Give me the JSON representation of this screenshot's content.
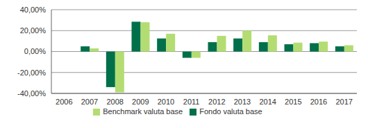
{
  "chart_data": {
    "type": "bar",
    "categories": [
      "2006",
      "2007",
      "2008",
      "2009",
      "2010",
      "2011",
      "2012",
      "2013",
      "2014",
      "2015",
      "2016",
      "2017"
    ],
    "series": [
      {
        "name": "Fondo valuta base",
        "color": "#00704a",
        "values": [
          null,
          5,
          -34,
          28.5,
          12.5,
          -6,
          9,
          12.5,
          9,
          7,
          8,
          5
        ]
      },
      {
        "name": "Benchmark valuta base",
        "color": "#b3dd72",
        "values": [
          null,
          3,
          -39,
          28,
          17,
          -6,
          15,
          20,
          15.5,
          8.5,
          9.5,
          6
        ]
      }
    ],
    "ylim": [
      -40,
      40
    ],
    "yticks": [
      {
        "value": -40,
        "label": "-40,00%"
      },
      {
        "value": -20,
        "label": "-20,00%"
      },
      {
        "value": 0,
        "label": "0,00%"
      },
      {
        "value": 20,
        "label": "20,00%"
      },
      {
        "value": 40,
        "label": "40,00%"
      }
    ],
    "grid": true,
    "legend": "bottom"
  }
}
